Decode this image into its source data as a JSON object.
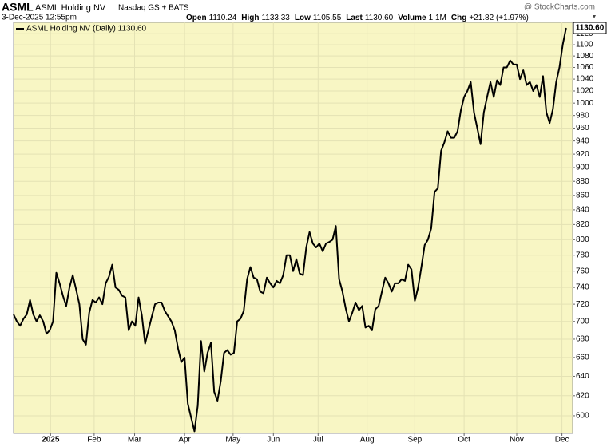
{
  "chart_data": {
    "type": "line",
    "symbol": "ASML",
    "title": "ASML Holding NV",
    "exchange": "Nasdaq GS + BATS",
    "source": "@ StockCharts.com",
    "date": "3-Dec-2025 12:55pm",
    "quote": [
      {
        "label": "Open",
        "value": "1110.24"
      },
      {
        "label": "High",
        "value": "1133.33"
      },
      {
        "label": "Low",
        "value": "1105.55"
      },
      {
        "label": "Last",
        "value": "1130.60"
      },
      {
        "label": "Volume",
        "value": "1.1M"
      },
      {
        "label": "Chg",
        "value": "+21.82 (+1.97%)"
      }
    ],
    "series": [
      {
        "name": "ASML Holding NV (Daily) 1130.60",
        "color": "#000000",
        "values": [
          708,
          700,
          695,
          703,
          708,
          725,
          708,
          700,
          707,
          700,
          686,
          690,
          700,
          758,
          745,
          730,
          718,
          740,
          755,
          738,
          720,
          680,
          674,
          710,
          725,
          722,
          728,
          720,
          745,
          753,
          768,
          740,
          737,
          730,
          728,
          690,
          700,
          695,
          728,
          707,
          675,
          690,
          705,
          720,
          722,
          722,
          712,
          706,
          700,
          690,
          670,
          655,
          660,
          612,
          598,
          585,
          610,
          678,
          645,
          665,
          676,
          624,
          615,
          635,
          665,
          668,
          663,
          665,
          700,
          703,
          712,
          750,
          765,
          752,
          750,
          735,
          733,
          752,
          745,
          740,
          748,
          745,
          755,
          780,
          780,
          760,
          775,
          757,
          755,
          790,
          810,
          795,
          790,
          795,
          785,
          795,
          797,
          800,
          818,
          750,
          735,
          715,
          700,
          710,
          722,
          713,
          718,
          693,
          695,
          690,
          714,
          718,
          735,
          752,
          745,
          735,
          745,
          745,
          750,
          748,
          768,
          762,
          724,
          740,
          765,
          793,
          800,
          815,
          865,
          870,
          925,
          938,
          955,
          945,
          945,
          955,
          988,
          1010,
          1020,
          1035,
          985,
          960,
          935,
          985,
          1010,
          1035,
          1010,
          1038,
          1030,
          1060,
          1060,
          1072,
          1065,
          1065,
          1040,
          1055,
          1030,
          1035,
          1020,
          1030,
          1010,
          1045,
          985,
          968,
          990,
          1035,
          1060,
          1100,
          1130.6
        ]
      }
    ],
    "xlim": [
      0,
      170
    ],
    "xticks": [
      {
        "value": 11.25,
        "label": "2025"
      },
      {
        "value": 24.5,
        "label": "Feb"
      },
      {
        "value": 36.8,
        "label": "Mar"
      },
      {
        "value": 52,
        "label": "Apr"
      },
      {
        "value": 66.75,
        "label": "May"
      },
      {
        "value": 79,
        "label": "Jun"
      },
      {
        "value": 92.6,
        "label": "Jul"
      },
      {
        "value": 107.5,
        "label": "Aug"
      },
      {
        "value": 122,
        "label": "Sep"
      },
      {
        "value": 137,
        "label": "Oct"
      },
      {
        "value": 153,
        "label": "Nov"
      },
      {
        "value": 166.75,
        "label": "Dec"
      }
    ],
    "ylim": [
      583,
      1141
    ],
    "yticks": [
      600,
      620,
      640,
      660,
      680,
      700,
      720,
      740,
      760,
      780,
      800,
      820,
      840,
      860,
      880,
      900,
      920,
      940,
      960,
      980,
      1000,
      1020,
      1040,
      1060,
      1080,
      1100,
      1120
    ],
    "ylog": true,
    "grid": true,
    "plot_color": "#f8f6c4"
  }
}
